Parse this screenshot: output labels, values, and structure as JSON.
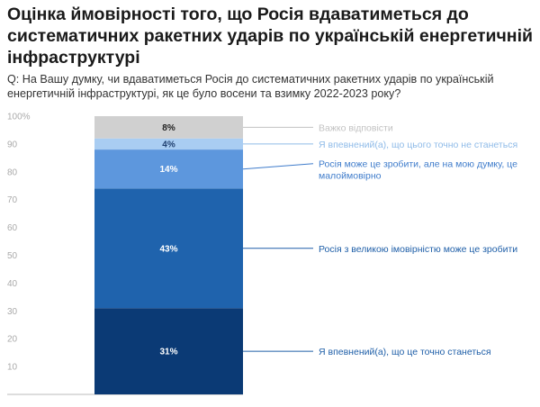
{
  "title": "Оцінка ймовірності того, що Росія вдаватиметься до систематичних ракетних ударів по українській енергетичній інфраструктурі",
  "question": "Q: На Вашу думку, чи вдаватиметься Росія до систематичних ракетних ударів по українській енергетичній інфраструктурі, як це було восени та взимку 2022-2023 року?",
  "chart_data": {
    "type": "bar",
    "stacked": true,
    "title": "Оцінка ймовірності того, що Росія вдаватиметься до систематичних ракетних ударів по українській енергетичній інфраструктурі",
    "ylim": [
      0,
      100
    ],
    "yticks": [
      "10",
      "20",
      "30",
      "40",
      "50",
      "60",
      "70",
      "80",
      "90",
      "100%"
    ],
    "grid": false,
    "legend_placement": "right",
    "series": [
      {
        "name": "Я впевнений(а), що це точно станеться",
        "value": 31,
        "label": "31%",
        "color": "#0b3a75",
        "label_color": "#ffffff",
        "legend_color": "#1f5fa8"
      },
      {
        "name": "Росія з великою імовірністю може це зробити",
        "value": 43,
        "label": "43%",
        "color": "#1f63ad",
        "label_color": "#ffffff",
        "legend_color": "#1f5fa8"
      },
      {
        "name": "Росія може це зробити, але на мою думку, це малоймовірно",
        "value": 14,
        "label": "14%",
        "color": "#5d97dd",
        "label_color": "#ffffff",
        "legend_color": "#3f7ccb"
      },
      {
        "name": "Я впевнений(а), що цього точно не станеться",
        "value": 4,
        "label": "4%",
        "color": "#a9cdf2",
        "label_color": "#1f3f6f",
        "legend_color": "#8fbbe8"
      },
      {
        "name": "Важко відповісти",
        "value": 8,
        "label": "8%",
        "color": "#d0d0d0",
        "label_color": "#222222",
        "legend_color": "#c2c2c2"
      }
    ]
  }
}
